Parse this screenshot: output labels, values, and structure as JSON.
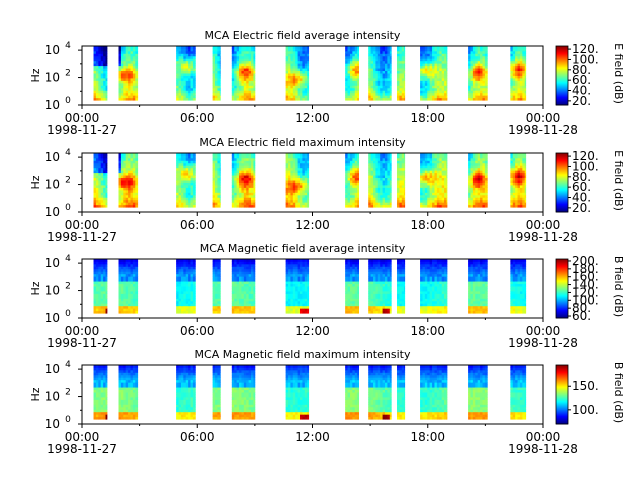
{
  "chart_data": [
    {
      "type": "heatmap",
      "title": "MCA  Electric field average intensity",
      "ylabel": "Hz",
      "yticks": [
        {
          "base": "10",
          "exp": "0"
        },
        {
          "base": "10",
          "exp": "2"
        },
        {
          "base": "10",
          "exp": "4"
        }
      ],
      "xticks": [
        "00:00",
        "06:00",
        "12:00",
        "18:00",
        "00:00"
      ],
      "date_start": "1998-11-27",
      "date_end": "1998-11-28",
      "colorbar_label": "E field (dB)",
      "colorbar_ticks": [
        "20.",
        "40.",
        "60.",
        "80.",
        "100.",
        "120."
      ],
      "colorbar_range": [
        12,
        126
      ],
      "field": "electric",
      "variant": "avg"
    },
    {
      "type": "heatmap",
      "title": "MCA  Electric field maximum intensity",
      "ylabel": "Hz",
      "yticks": [
        {
          "base": "10",
          "exp": "0"
        },
        {
          "base": "10",
          "exp": "2"
        },
        {
          "base": "10",
          "exp": "4"
        }
      ],
      "xticks": [
        "00:00",
        "06:00",
        "12:00",
        "18:00",
        "00:00"
      ],
      "date_start": "1998-11-27",
      "date_end": "1998-11-28",
      "colorbar_label": "E field (dB)",
      "colorbar_ticks": [
        "20.",
        "40.",
        "60.",
        "80.",
        "100.",
        "120."
      ],
      "colorbar_range": [
        12,
        126
      ],
      "field": "electric",
      "variant": "max"
    },
    {
      "type": "heatmap",
      "title": "MCA  Magnetic field average intensity",
      "ylabel": "Hz",
      "yticks": [
        {
          "base": "10",
          "exp": "0"
        },
        {
          "base": "10",
          "exp": "2"
        },
        {
          "base": "10",
          "exp": "4"
        }
      ],
      "xticks": [
        "00:00",
        "06:00",
        "12:00",
        "18:00",
        "00:00"
      ],
      "date_start": "1998-11-27",
      "date_end": "1998-11-28",
      "colorbar_label": "B field (dB)",
      "colorbar_ticks": [
        "60.",
        "80.",
        "100.",
        "120.",
        "140.",
        "160.",
        "180.",
        "200."
      ],
      "colorbar_range": [
        55,
        205
      ],
      "field": "magnetic",
      "variant": "avg"
    },
    {
      "type": "heatmap",
      "title": "MCA  Magnetic field maximum intensity",
      "ylabel": "Hz",
      "yticks": [
        {
          "base": "10",
          "exp": "0"
        },
        {
          "base": "10",
          "exp": "2"
        },
        {
          "base": "10",
          "exp": "4"
        }
      ],
      "xticks": [
        "00:00",
        "06:00",
        "12:00",
        "18:00",
        "00:00"
      ],
      "date_start": "1998-11-27",
      "date_end": "1998-11-28",
      "colorbar_label": "B field (dB)",
      "colorbar_ticks": [
        "100.",
        "150."
      ],
      "colorbar_range": [
        70,
        195
      ],
      "field": "magnetic",
      "variant": "max"
    }
  ],
  "data_segments_hours": [
    [
      0.6,
      1.3
    ],
    [
      1.9,
      2.9
    ],
    [
      4.9,
      5.9
    ],
    [
      6.8,
      7.2
    ],
    [
      7.8,
      9.0
    ],
    [
      10.6,
      11.8
    ],
    [
      13.7,
      14.4
    ],
    [
      14.9,
      16.1
    ],
    [
      16.4,
      16.8
    ],
    [
      17.6,
      19.0
    ],
    [
      20.1,
      21.1
    ],
    [
      22.3,
      23.1
    ]
  ]
}
